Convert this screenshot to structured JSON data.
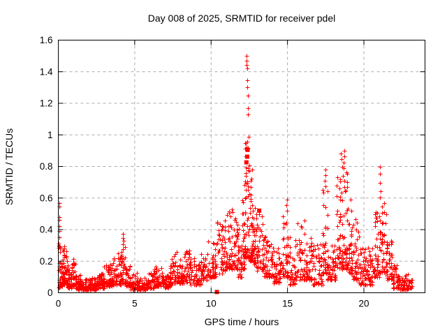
{
  "title": "Day 008 of 2025, SRMTID for receiver pdel",
  "axes": {
    "x": {
      "label": "GPS time / hours",
      "range": [
        0,
        24
      ],
      "ticks": [
        {
          "value": 0,
          "label": "0"
        },
        {
          "value": 5,
          "label": "5"
        },
        {
          "value": 10,
          "label": "10"
        },
        {
          "value": 15,
          "label": "15"
        },
        {
          "value": 20,
          "label": "20"
        }
      ],
      "grid": true
    },
    "y": {
      "label": "SRMTID / TECUs",
      "range": [
        0,
        1.6
      ],
      "ticks": [
        {
          "value": 0,
          "label": "0"
        },
        {
          "value": 0.2,
          "label": "0.2"
        },
        {
          "value": 0.4,
          "label": "0.4"
        },
        {
          "value": 0.6,
          "label": "0.6"
        },
        {
          "value": 0.8,
          "label": "0.8"
        },
        {
          "value": 1,
          "label": "1"
        },
        {
          "value": 1.2,
          "label": "1.2"
        },
        {
          "value": 1.4,
          "label": "1.4"
        },
        {
          "value": 1.6,
          "label": "1.6"
        }
      ],
      "grid": true
    }
  },
  "colors": {
    "points": "#ff0000",
    "grid": "#aaaaaa",
    "border": "#000000",
    "background": "#ffffff"
  },
  "chart_data": {
    "type": "scatter",
    "title": "Day 008 of 2025, SRMTID for receiver pdel",
    "xlabel": "GPS time / hours",
    "ylabel": "SRMTID / TECUs",
    "xlim": [
      0,
      24
    ],
    "ylim": [
      0,
      1.6
    ],
    "grid": "dashed-major-both",
    "legend": "none",
    "marker": "plus",
    "marker_color": "#ff0000",
    "description": "Dense TID scatter vs GPS time; bands given as [tStart,tEnd,yMin,yMax,nPoints]",
    "bands": [
      [
        0.0,
        0.12,
        0.03,
        0.3,
        22
      ],
      [
        0.12,
        0.3,
        0.04,
        0.26,
        30
      ],
      [
        0.3,
        0.6,
        0.05,
        0.3,
        45
      ],
      [
        0.6,
        0.9,
        0.03,
        0.18,
        40
      ],
      [
        0.9,
        1.15,
        0.04,
        0.22,
        35
      ],
      [
        1.15,
        1.5,
        0.02,
        0.12,
        40
      ],
      [
        1.5,
        2.0,
        0.02,
        0.09,
        50
      ],
      [
        2.0,
        2.5,
        0.02,
        0.1,
        50
      ],
      [
        2.5,
        3.0,
        0.03,
        0.13,
        50
      ],
      [
        3.0,
        3.5,
        0.04,
        0.18,
        45
      ],
      [
        3.5,
        3.9,
        0.05,
        0.22,
        40
      ],
      [
        3.9,
        4.15,
        0.05,
        0.26,
        28
      ],
      [
        4.15,
        4.4,
        0.06,
        0.34,
        28
      ],
      [
        4.4,
        4.7,
        0.04,
        0.18,
        32
      ],
      [
        4.7,
        5.2,
        0.02,
        0.13,
        45
      ],
      [
        5.2,
        5.8,
        0.02,
        0.1,
        50
      ],
      [
        5.8,
        6.3,
        0.03,
        0.13,
        45
      ],
      [
        6.3,
        6.9,
        0.04,
        0.17,
        50
      ],
      [
        6.9,
        7.3,
        0.03,
        0.11,
        38
      ],
      [
        7.3,
        7.8,
        0.06,
        0.27,
        45
      ],
      [
        7.8,
        8.2,
        0.06,
        0.22,
        38
      ],
      [
        8.2,
        8.6,
        0.07,
        0.27,
        38
      ],
      [
        8.6,
        9.3,
        0.05,
        0.22,
        55
      ],
      [
        9.3,
        9.8,
        0.08,
        0.25,
        42
      ],
      [
        9.8,
        10.35,
        0.1,
        0.33,
        48
      ],
      [
        10.35,
        10.55,
        0.24,
        0.45,
        8
      ],
      [
        10.55,
        11.0,
        0.12,
        0.46,
        42
      ],
      [
        11.0,
        11.45,
        0.15,
        0.54,
        45
      ],
      [
        11.45,
        11.75,
        0.15,
        0.5,
        32
      ],
      [
        11.75,
        12.0,
        0.1,
        0.44,
        28
      ],
      [
        12.0,
        12.2,
        0.15,
        0.62,
        32
      ],
      [
        12.2,
        12.48,
        0.22,
        0.97,
        48
      ],
      [
        12.48,
        12.7,
        0.2,
        0.8,
        40
      ],
      [
        12.7,
        12.95,
        0.18,
        0.62,
        35
      ],
      [
        12.95,
        13.4,
        0.14,
        0.5,
        42
      ],
      [
        13.4,
        14.1,
        0.1,
        0.36,
        60
      ],
      [
        14.1,
        14.6,
        0.06,
        0.28,
        48
      ],
      [
        14.6,
        15.15,
        0.1,
        0.5,
        48
      ],
      [
        15.15,
        15.5,
        0.05,
        0.26,
        30
      ],
      [
        15.5,
        16.2,
        0.08,
        0.46,
        55
      ],
      [
        16.2,
        16.6,
        0.08,
        0.35,
        38
      ],
      [
        16.6,
        17.3,
        0.05,
        0.31,
        55
      ],
      [
        17.3,
        17.6,
        0.12,
        0.66,
        32
      ],
      [
        17.6,
        18.2,
        0.08,
        0.31,
        50
      ],
      [
        18.2,
        18.6,
        0.15,
        0.74,
        48
      ],
      [
        18.6,
        19.0,
        0.15,
        0.8,
        48
      ],
      [
        19.0,
        19.3,
        0.12,
        0.62,
        32
      ],
      [
        19.3,
        19.7,
        0.08,
        0.47,
        38
      ],
      [
        19.7,
        20.1,
        0.05,
        0.28,
        38
      ],
      [
        20.1,
        20.6,
        0.05,
        0.3,
        42
      ],
      [
        20.6,
        21.0,
        0.1,
        0.52,
        40
      ],
      [
        21.0,
        21.45,
        0.12,
        0.57,
        48
      ],
      [
        21.45,
        21.9,
        0.08,
        0.34,
        42
      ],
      [
        21.9,
        22.3,
        0.03,
        0.2,
        40
      ],
      [
        22.3,
        22.9,
        0.02,
        0.12,
        52
      ],
      [
        22.9,
        23.15,
        0.03,
        0.09,
        16
      ]
    ],
    "notable_points": [
      [
        0.05,
        0.57
      ],
      [
        0.07,
        0.545
      ],
      [
        0.06,
        0.48
      ],
      [
        0.09,
        0.46
      ],
      [
        0.05,
        0.42
      ],
      [
        0.08,
        0.39
      ],
      [
        0.06,
        0.35
      ],
      [
        0.04,
        0.31
      ],
      [
        0.1,
        0.28
      ],
      [
        0.3,
        0.21
      ],
      [
        0.32,
        0.19
      ],
      [
        4.24,
        0.375
      ],
      [
        4.21,
        0.345
      ],
      [
        4.27,
        0.33
      ],
      [
        4.23,
        0.305
      ],
      [
        12.32,
        1.5
      ],
      [
        12.34,
        1.47
      ],
      [
        12.33,
        1.445
      ],
      [
        12.35,
        1.42
      ],
      [
        12.37,
        1.345
      ],
      [
        12.36,
        1.3
      ],
      [
        12.4,
        1.25
      ],
      [
        12.42,
        1.17
      ],
      [
        12.39,
        1.13
      ],
      [
        12.44,
        0.99
      ],
      [
        12.36,
        0.955
      ],
      [
        12.3,
        0.92
      ],
      [
        14.95,
        0.59
      ],
      [
        14.93,
        0.555
      ],
      [
        14.97,
        0.52
      ],
      [
        17.47,
        0.78
      ],
      [
        17.49,
        0.745
      ],
      [
        17.45,
        0.71
      ],
      [
        17.5,
        0.675
      ],
      [
        18.48,
        0.88
      ],
      [
        18.52,
        0.845
      ],
      [
        18.71,
        0.9
      ],
      [
        18.74,
        0.862
      ],
      [
        18.68,
        0.825
      ],
      [
        18.6,
        0.8
      ],
      [
        18.9,
        0.755
      ],
      [
        21.04,
        0.8
      ],
      [
        21.07,
        0.755
      ],
      [
        21.05,
        0.695
      ],
      [
        21.09,
        0.645
      ],
      [
        21.03,
        0.605
      ]
    ],
    "square_markers": [
      [
        10.38,
        0.005
      ],
      [
        12.39,
        0.905
      ],
      [
        12.36,
        0.862
      ],
      [
        12.31,
        0.826
      ],
      [
        13.15,
        0.52
      ]
    ]
  }
}
